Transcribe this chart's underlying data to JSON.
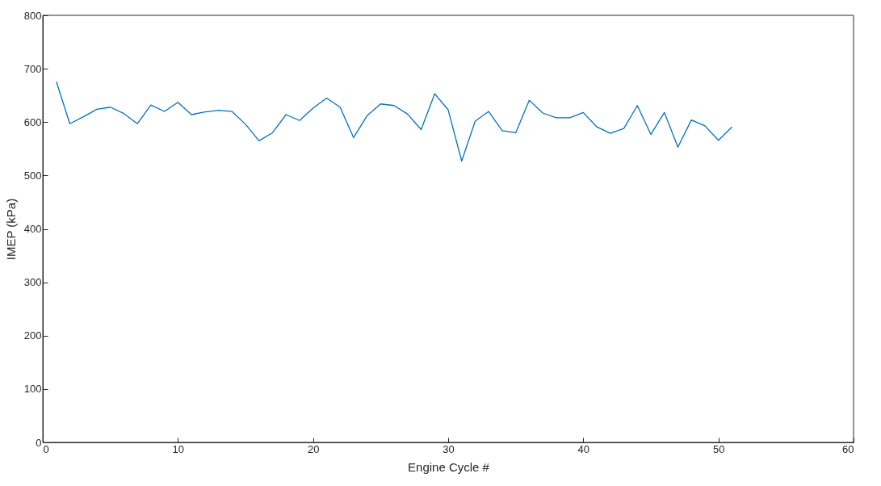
{
  "chart_data": {
    "type": "line",
    "xlabel": "Engine Cycle #",
    "ylabel": "IMEP (kPa)",
    "x": [
      1,
      2,
      3,
      4,
      5,
      6,
      7,
      8,
      9,
      10,
      11,
      12,
      13,
      14,
      15,
      16,
      17,
      18,
      19,
      20,
      21,
      22,
      23,
      24,
      25,
      26,
      27,
      28,
      29,
      30,
      31,
      32,
      33,
      34,
      35,
      36,
      37,
      38,
      39,
      40,
      41,
      42,
      43,
      44,
      45,
      46,
      47,
      48,
      49,
      50,
      51
    ],
    "series": [
      {
        "color": "#0072bd",
        "values": [
          676,
          597,
          610,
          624,
          628,
          616,
          597,
          632,
          620,
          637,
          614,
          619,
          622,
          620,
          596,
          565,
          580,
          614,
          603,
          626,
          645,
          628,
          571,
          612,
          634,
          631,
          615,
          586,
          653,
          623,
          527,
          602,
          620,
          584,
          580,
          641,
          617,
          608,
          608,
          618,
          591,
          579,
          588,
          631,
          577,
          618,
          553,
          604,
          593,
          566,
          591
        ]
      }
    ],
    "xlim": [
      0,
      60
    ],
    "xticks": [
      0,
      10,
      20,
      30,
      40,
      50,
      60
    ],
    "ylim": [
      0,
      800
    ],
    "yticks": [
      0,
      100,
      200,
      300,
      400,
      500,
      600,
      700,
      800
    ],
    "grid": false,
    "marker": "none",
    "line_style": "solid"
  }
}
